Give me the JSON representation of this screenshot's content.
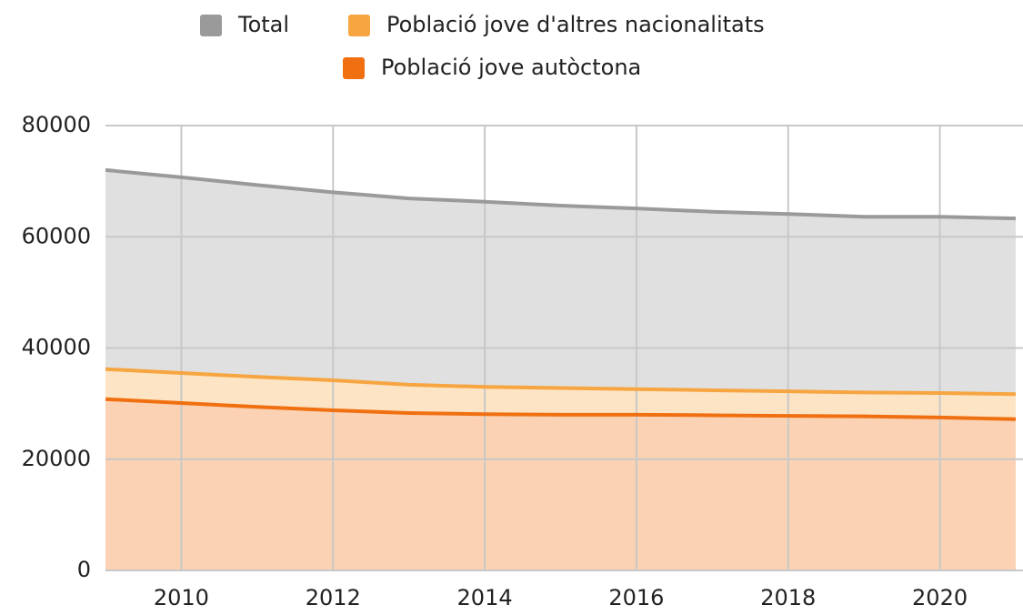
{
  "chart_data": {
    "type": "area",
    "x": [
      2009,
      2010,
      2011,
      2012,
      2013,
      2014,
      2015,
      2016,
      2017,
      2018,
      2019,
      2020,
      2021
    ],
    "series": [
      {
        "name": "Total",
        "color": "#9a9a9a",
        "fill": "#e0e0e0",
        "values": [
          72000,
          70700,
          69300,
          68000,
          66900,
          66300,
          65600,
          65100,
          64500,
          64100,
          63600,
          63600,
          63300
        ]
      },
      {
        "name": "Població jove d'altres nacionalitats",
        "color": "#f7a541",
        "fill": "#fde4c4",
        "values": [
          36200,
          35500,
          34800,
          34200,
          33400,
          33000,
          32800,
          32600,
          32400,
          32200,
          32000,
          31900,
          31700
        ]
      },
      {
        "name": "Població jove autòctona",
        "color": "#f07011",
        "fill": "#fbd2b3",
        "values": [
          30800,
          30100,
          29400,
          28800,
          28300,
          28100,
          28000,
          28000,
          27900,
          27800,
          27700,
          27500,
          27200
        ]
      }
    ],
    "xlim": [
      2009,
      2021
    ],
    "xticks": [
      2010,
      2012,
      2014,
      2016,
      2018,
      2020
    ],
    "ylim": [
      0,
      80000
    ],
    "yticks": [
      0,
      20000,
      40000,
      60000,
      80000
    ],
    "grid": true
  }
}
